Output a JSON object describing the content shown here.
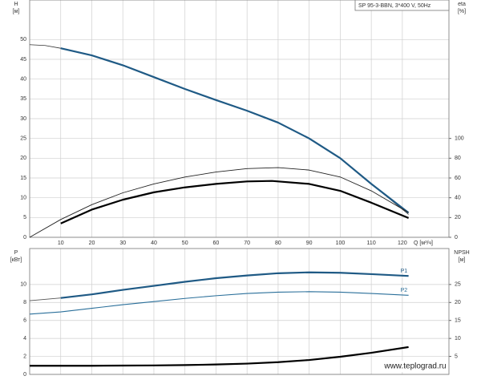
{
  "chart_data": [
    {
      "type": "line",
      "title": "SP 95-3-BBN, 3*400 V, 50Hz",
      "y_label": [
        "H",
        "[м]"
      ],
      "y2_label": [
        "eta",
        "[%]"
      ],
      "x_label": "Q [м³/ч]",
      "xlim": [
        0,
        135
      ],
      "xticks": [
        10,
        20,
        30,
        40,
        50,
        60,
        70,
        80,
        90,
        100,
        110,
        120
      ],
      "ylim": [
        0,
        60
      ],
      "yticks": [
        0,
        5,
        10,
        15,
        20,
        25,
        30,
        35,
        40,
        45,
        50
      ],
      "y2lim": [
        0,
        240
      ],
      "y2ticks": [
        0,
        20,
        40,
        60,
        80,
        100
      ],
      "grid": true,
      "series": [
        {
          "color": "#333333",
          "width": 0.8,
          "x": [
            0,
            5,
            10,
            20,
            30,
            40,
            50,
            60,
            70,
            80,
            90,
            100,
            110,
            122
          ],
          "values": [
            48.7,
            48.5,
            47.8,
            46,
            43.5,
            40.5,
            37.5,
            34.7,
            32,
            29,
            25,
            20,
            13.5,
            5.8
          ]
        },
        {
          "color": "#1f5a85",
          "width": 2.2,
          "x": [
            10,
            20,
            30,
            40,
            50,
            60,
            70,
            80,
            90,
            100,
            110,
            122
          ],
          "values": [
            47.8,
            46,
            43.5,
            40.5,
            37.5,
            34.7,
            32,
            29,
            25,
            20,
            13.5,
            6.2
          ]
        },
        {
          "color": "#222222",
          "width": 0.9,
          "axis": "y2",
          "x": [
            0,
            10,
            20,
            30,
            40,
            50,
            60,
            70,
            80,
            90,
            100,
            110,
            122
          ],
          "values": [
            0,
            18,
            33,
            45,
            54,
            61,
            66,
            69.5,
            70.5,
            68,
            61,
            47,
            25
          ]
        },
        {
          "color": "#000000",
          "width": 2.2,
          "axis": "y2",
          "x": [
            10,
            20,
            30,
            40,
            50,
            60,
            70,
            78,
            90,
            100,
            110,
            122
          ],
          "values": [
            14,
            28,
            38,
            45.5,
            50.5,
            54,
            56.5,
            57,
            54,
            47,
            35,
            19.5
          ]
        }
      ]
    },
    {
      "type": "line",
      "y_label": [
        "P",
        "[кВт]"
      ],
      "y2_label": [
        "NPSH",
        "[м]"
      ],
      "xlim": [
        0,
        135
      ],
      "ylim": [
        0,
        14
      ],
      "yticks": [
        0,
        2,
        4,
        6,
        8,
        10
      ],
      "y2lim": [
        0,
        35
      ],
      "y2ticks": [
        5,
        10,
        15,
        20,
        25
      ],
      "grid": true,
      "watermark": "www.teplograd.ru",
      "series": [
        {
          "color": "#555555",
          "width": 0.8,
          "x": [
            0,
            10
          ],
          "values": [
            8.2,
            8.5
          ]
        },
        {
          "name": "P1",
          "color": "#1f5a85",
          "width": 2.2,
          "x": [
            10,
            20,
            30,
            40,
            50,
            60,
            70,
            80,
            90,
            100,
            110,
            122
          ],
          "values": [
            8.5,
            8.9,
            9.4,
            9.85,
            10.3,
            10.7,
            11,
            11.25,
            11.35,
            11.3,
            11.15,
            10.95
          ]
        },
        {
          "name": "P2",
          "color": "#2a6f9a",
          "width": 1.1,
          "x": [
            0,
            10,
            20,
            30,
            40,
            50,
            60,
            70,
            80,
            90,
            100,
            110,
            122
          ],
          "values": [
            6.7,
            6.95,
            7.35,
            7.75,
            8.1,
            8.45,
            8.75,
            9,
            9.15,
            9.2,
            9.15,
            9,
            8.8
          ]
        },
        {
          "color": "#000000",
          "width": 2.2,
          "axis": "y2",
          "x": [
            0,
            10,
            20,
            30,
            40,
            50,
            60,
            70,
            80,
            90,
            100,
            110,
            122
          ],
          "values": [
            2.4,
            2.4,
            2.4,
            2.45,
            2.5,
            2.6,
            2.75,
            3,
            3.4,
            4,
            4.9,
            6,
            7.6
          ]
        }
      ]
    }
  ]
}
